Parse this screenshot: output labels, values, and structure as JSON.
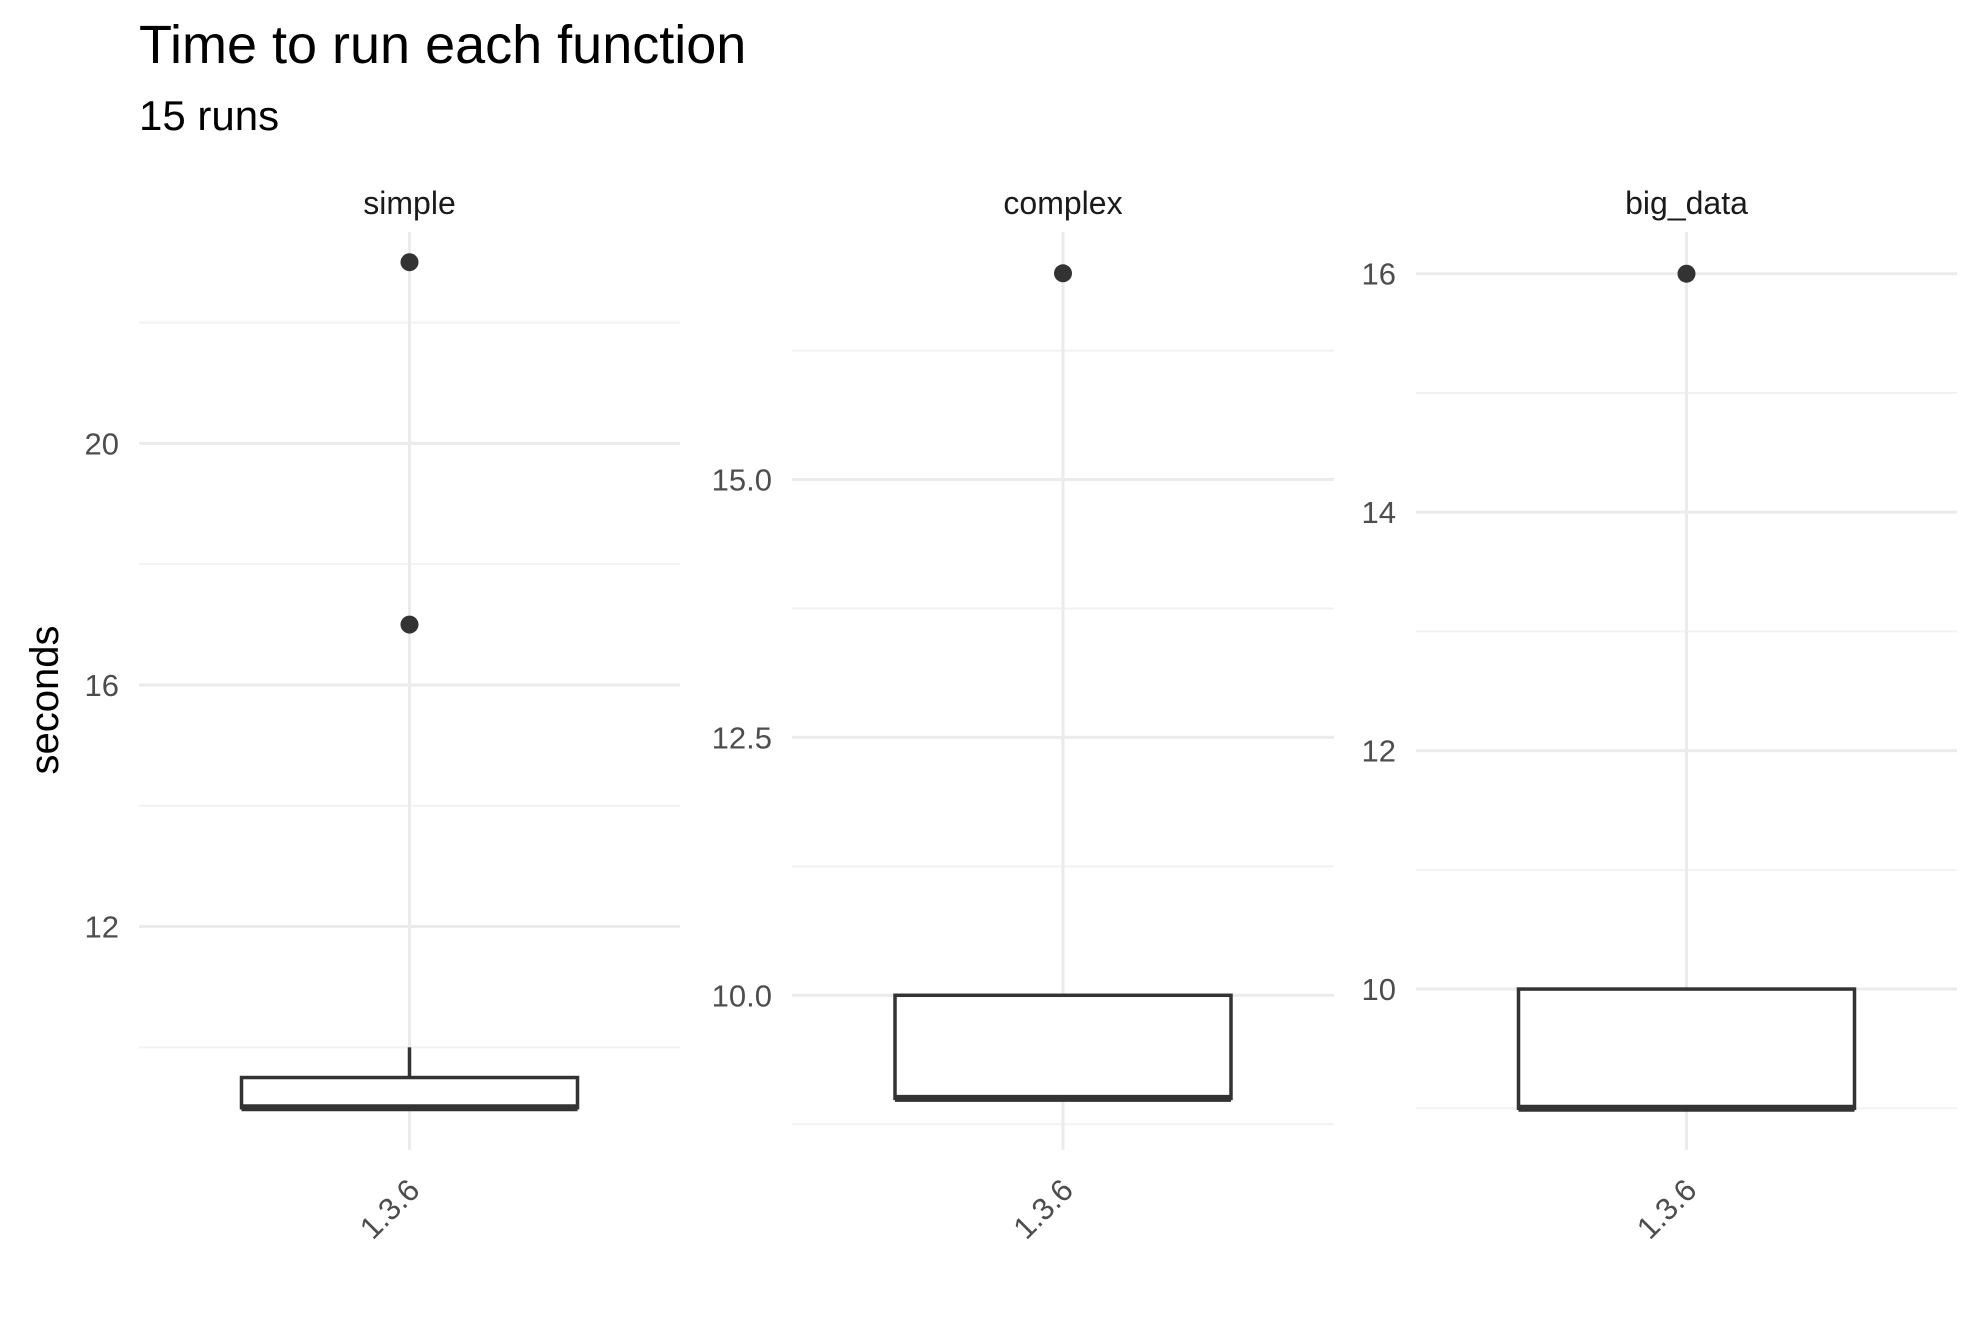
{
  "chart_data": {
    "type": "boxplot",
    "title": "Time to run each function",
    "subtitle": "15 runs",
    "ylabel": "seconds",
    "xlabel": "",
    "grid": true,
    "legend": "none",
    "colors": {
      "box": "#333333",
      "grid_major": "#ebebeb",
      "grid_minor": "#f2f2f2",
      "point": "#333333"
    },
    "facets": [
      {
        "name": "simple",
        "category": "1.3.6",
        "ylim": [
          8.3,
          23.5
        ],
        "yticks": [
          12,
          16,
          20
        ],
        "yticklabels": [
          "12",
          "16",
          "20"
        ],
        "box": {
          "q1": 9.0,
          "median": 9.0,
          "q3": 9.5,
          "whisker_low": 9.0,
          "whisker_high": 10.0
        },
        "outliers": [
          17,
          23
        ]
      },
      {
        "name": "complex",
        "category": "1.3.6",
        "ylim": [
          8.5,
          17.4
        ],
        "yticks": [
          10,
          12.5,
          15
        ],
        "yticklabels": [
          "10.0",
          "12.5",
          "15.0"
        ],
        "box": {
          "q1": 9.0,
          "median": 9.0,
          "q3": 10.0,
          "whisker_low": 9.0,
          "whisker_high": 10.0
        },
        "outliers": [
          17
        ]
      },
      {
        "name": "big_data",
        "category": "1.3.6",
        "ylim": [
          8.65,
          16.35
        ],
        "yticks": [
          10,
          12,
          14,
          16
        ],
        "yticklabels": [
          "10",
          "12",
          "14",
          "16"
        ],
        "box": {
          "q1": 9.0,
          "median": 9.0,
          "q3": 10.0,
          "whisker_low": 9.0,
          "whisker_high": 10.0
        },
        "outliers": [
          16
        ]
      }
    ]
  }
}
